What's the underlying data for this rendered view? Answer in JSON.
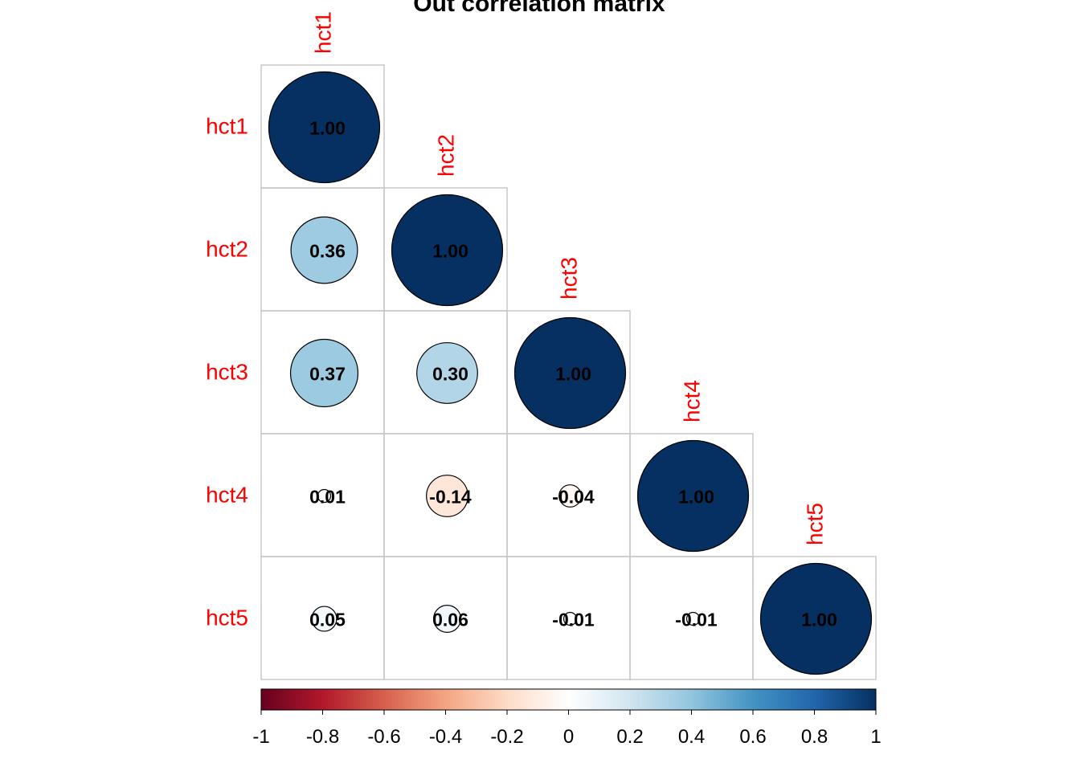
{
  "chart_data": {
    "type": "heatmap",
    "title": "Out correlation matrix",
    "variables": [
      "hct1",
      "hct2",
      "hct3",
      "hct4",
      "hct5"
    ],
    "matrix": [
      [
        1.0,
        null,
        null,
        null,
        null
      ],
      [
        0.36,
        1.0,
        null,
        null,
        null
      ],
      [
        0.37,
        0.3,
        1.0,
        null,
        null
      ],
      [
        0.01,
        -0.14,
        -0.04,
        1.0,
        null
      ],
      [
        0.05,
        0.06,
        -0.01,
        -0.01,
        1.0
      ]
    ],
    "value_labels": [
      [
        "1.00",
        "",
        "",
        "",
        ""
      ],
      [
        "0.36",
        "1.00",
        "",
        "",
        ""
      ],
      [
        "0.37",
        "0.30",
        "1.00",
        "",
        ""
      ],
      [
        "0.01",
        "-0.14",
        "-0.04",
        "1.00",
        ""
      ],
      [
        "0.05",
        "0.06",
        "-0.01",
        "-0.01",
        "1.00"
      ]
    ],
    "shape": "lower-triangle circles",
    "colorbar": {
      "ticks": [
        "-1",
        "-0.8",
        "-0.6",
        "-0.4",
        "-0.2",
        "0",
        "0.2",
        "0.4",
        "0.6",
        "0.8",
        "1"
      ],
      "range": [
        -1,
        1
      ],
      "colors": [
        "#67001f",
        "#b2182b",
        "#d6604d",
        "#f4a582",
        "#fddbc7",
        "#ffffff",
        "#d1e5f0",
        "#92c5de",
        "#4393c3",
        "#2166ac",
        "#053061"
      ]
    },
    "label_color": "#ff0000"
  }
}
